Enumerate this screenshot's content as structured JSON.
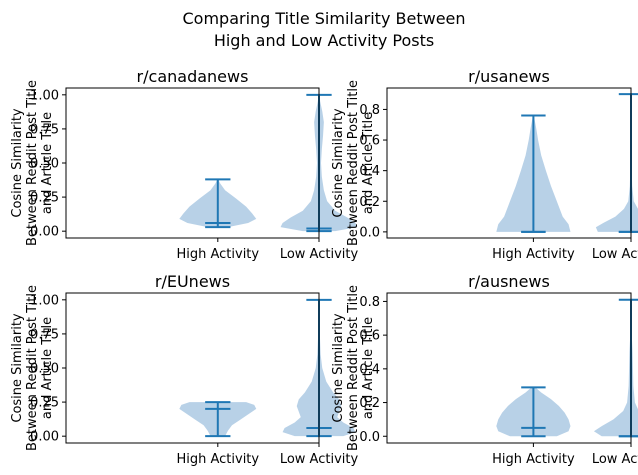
{
  "suptitle_lines": [
    "Comparing Title Similarity Between",
    "High and Low Activity Posts"
  ],
  "ylabel_lines": [
    "Cosine Similarity",
    "Between Reddit Post Title",
    "and Article Title"
  ],
  "colors": {
    "body": "#b8d1e7",
    "line": "#1f77b4"
  },
  "chart_data": [
    {
      "type": "violin",
      "title": "r/canadanews",
      "categories": [
        "High Activity",
        "Low Activity"
      ],
      "ylim": [
        -0.05,
        1.05
      ],
      "yticks": [
        0.0,
        0.25,
        0.5,
        0.75,
        1.0
      ],
      "ytick_labels": [
        "0.00",
        "0.25",
        "0.50",
        "0.75",
        "1.00"
      ],
      "violins": [
        {
          "min": 0.03,
          "max": 0.38,
          "median": 0.06,
          "profile": [
            [
              0.03,
              0.25
            ],
            [
              0.06,
              0.75
            ],
            [
              0.09,
              0.95
            ],
            [
              0.13,
              0.85
            ],
            [
              0.18,
              0.7
            ],
            [
              0.24,
              0.45
            ],
            [
              0.3,
              0.18
            ],
            [
              0.35,
              0.06
            ],
            [
              0.38,
              0.01
            ]
          ]
        },
        {
          "min": 0.0,
          "max": 1.0,
          "median": 0.02,
          "profile": [
            [
              0.0,
              0.4
            ],
            [
              0.03,
              0.95
            ],
            [
              0.06,
              0.9
            ],
            [
              0.1,
              0.7
            ],
            [
              0.15,
              0.4
            ],
            [
              0.22,
              0.2
            ],
            [
              0.3,
              0.12
            ],
            [
              0.4,
              0.07
            ],
            [
              0.5,
              0.05
            ],
            [
              0.6,
              0.07
            ],
            [
              0.7,
              0.1
            ],
            [
              0.8,
              0.12
            ],
            [
              0.88,
              0.08
            ],
            [
              0.95,
              0.03
            ],
            [
              1.0,
              0.01
            ]
          ]
        }
      ]
    },
    {
      "type": "violin",
      "title": "r/usanews",
      "categories": [
        "High Activity",
        "Low Activity"
      ],
      "ylim": [
        -0.04,
        0.94
      ],
      "yticks": [
        0.0,
        0.2,
        0.4,
        0.6,
        0.8
      ],
      "ytick_labels": [
        "0.0",
        "0.2",
        "0.4",
        "0.6",
        "0.8"
      ],
      "violins": [
        {
          "min": 0.0,
          "max": 0.76,
          "median": 0.0,
          "profile": [
            [
              0.0,
              0.95
            ],
            [
              0.05,
              0.9
            ],
            [
              0.1,
              0.75
            ],
            [
              0.2,
              0.6
            ],
            [
              0.3,
              0.45
            ],
            [
              0.4,
              0.32
            ],
            [
              0.5,
              0.2
            ],
            [
              0.6,
              0.12
            ],
            [
              0.68,
              0.07
            ],
            [
              0.76,
              0.01
            ]
          ]
        },
        {
          "min": 0.0,
          "max": 0.9,
          "median": 0.0,
          "profile": [
            [
              0.0,
              0.85
            ],
            [
              0.03,
              0.9
            ],
            [
              0.06,
              0.7
            ],
            [
              0.1,
              0.4
            ],
            [
              0.15,
              0.18
            ],
            [
              0.2,
              0.07
            ],
            [
              0.3,
              0.03
            ],
            [
              0.45,
              0.015
            ],
            [
              0.6,
              0.01
            ],
            [
              0.75,
              0.005
            ],
            [
              0.9,
              0.002
            ]
          ]
        }
      ]
    },
    {
      "type": "violin",
      "title": "r/EUnews",
      "categories": [
        "High Activity",
        "Low Activity"
      ],
      "ylim": [
        -0.05,
        1.05
      ],
      "yticks": [
        0.0,
        0.25,
        0.5,
        0.75,
        1.0
      ],
      "ytick_labels": [
        "0.00",
        "0.25",
        "0.50",
        "0.75",
        "1.00"
      ],
      "violins": [
        {
          "min": 0.0,
          "max": 0.25,
          "median": 0.2,
          "profile": [
            [
              0.0,
              0.18
            ],
            [
              0.04,
              0.25
            ],
            [
              0.08,
              0.35
            ],
            [
              0.12,
              0.55
            ],
            [
              0.16,
              0.75
            ],
            [
              0.2,
              0.95
            ],
            [
              0.23,
              0.9
            ],
            [
              0.25,
              0.7
            ]
          ]
        },
        {
          "min": 0.0,
          "max": 1.0,
          "median": 0.06,
          "profile": [
            [
              0.0,
              0.6
            ],
            [
              0.03,
              0.9
            ],
            [
              0.06,
              0.85
            ],
            [
              0.1,
              0.6
            ],
            [
              0.14,
              0.45
            ],
            [
              0.18,
              0.5
            ],
            [
              0.22,
              0.55
            ],
            [
              0.27,
              0.5
            ],
            [
              0.32,
              0.35
            ],
            [
              0.4,
              0.18
            ],
            [
              0.5,
              0.08
            ],
            [
              0.6,
              0.04
            ],
            [
              0.75,
              0.02
            ],
            [
              0.9,
              0.01
            ],
            [
              1.0,
              0.005
            ]
          ]
        }
      ]
    },
    {
      "type": "violin",
      "title": "r/ausnews",
      "categories": [
        "High Activity",
        "Low Activity"
      ],
      "ylim": [
        -0.04,
        0.85
      ],
      "yticks": [
        0.0,
        0.2,
        0.4,
        0.6,
        0.8
      ],
      "ytick_labels": [
        "0.0",
        "0.2",
        "0.4",
        "0.6",
        "0.8"
      ],
      "violins": [
        {
          "min": 0.0,
          "max": 0.29,
          "median": 0.05,
          "profile": [
            [
              0.0,
              0.6
            ],
            [
              0.03,
              0.9
            ],
            [
              0.06,
              0.95
            ],
            [
              0.1,
              0.9
            ],
            [
              0.14,
              0.8
            ],
            [
              0.18,
              0.65
            ],
            [
              0.22,
              0.45
            ],
            [
              0.26,
              0.2
            ],
            [
              0.29,
              0.05
            ]
          ]
        },
        {
          "min": 0.0,
          "max": 0.81,
          "median": 0.0,
          "profile": [
            [
              0.0,
              0.75
            ],
            [
              0.03,
              0.95
            ],
            [
              0.06,
              0.75
            ],
            [
              0.1,
              0.45
            ],
            [
              0.15,
              0.2
            ],
            [
              0.2,
              0.1
            ],
            [
              0.3,
              0.06
            ],
            [
              0.4,
              0.05
            ],
            [
              0.5,
              0.04
            ],
            [
              0.6,
              0.02
            ],
            [
              0.7,
              0.01
            ],
            [
              0.81,
              0.002
            ]
          ]
        }
      ]
    }
  ]
}
